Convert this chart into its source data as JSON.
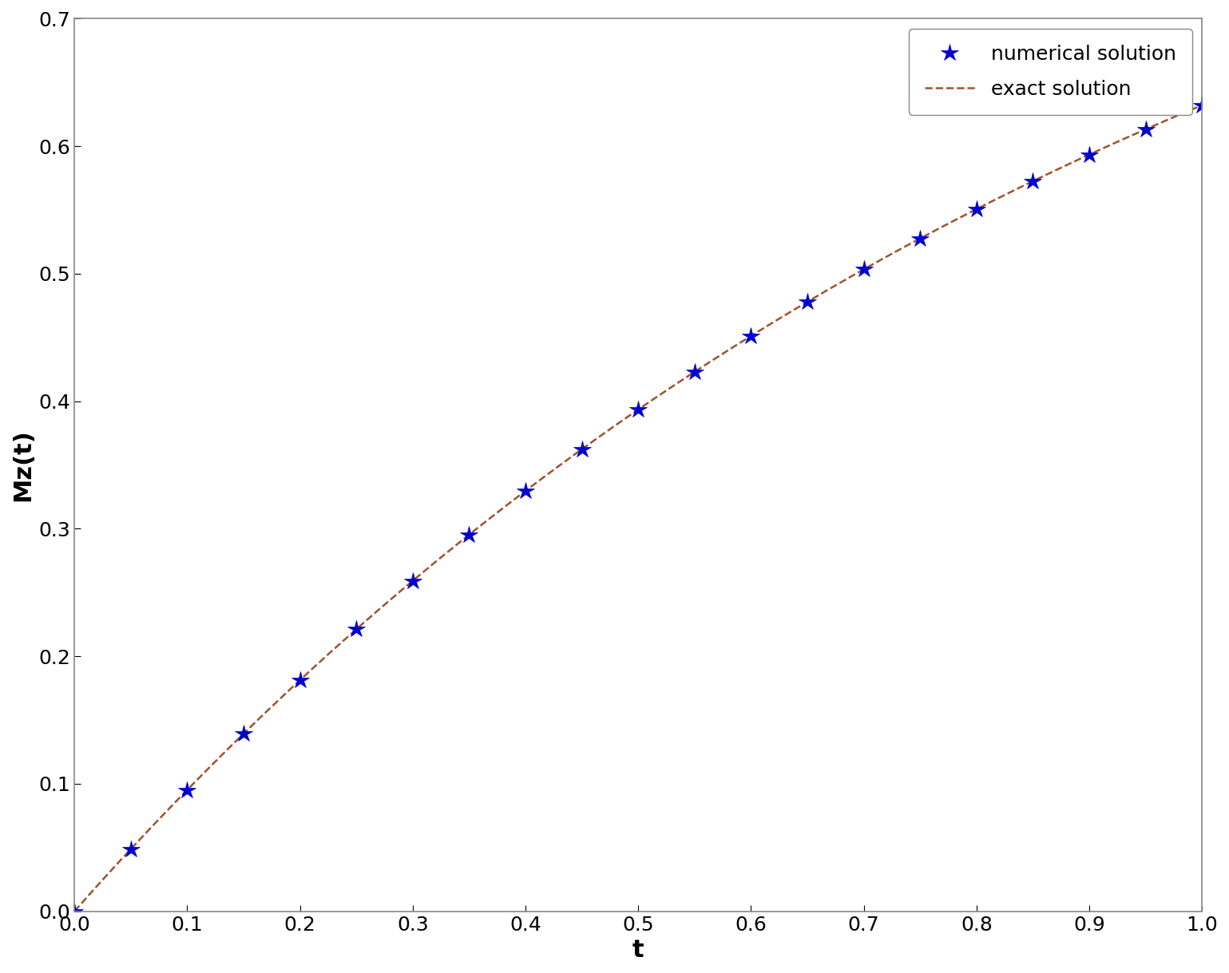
{
  "title": "",
  "xlabel": "t",
  "ylabel": "Mz(t)",
  "xlim": [
    0,
    1.0
  ],
  "ylim": [
    0,
    0.7
  ],
  "xticks": [
    0,
    0.1,
    0.2,
    0.3,
    0.4,
    0.5,
    0.6,
    0.7,
    0.8,
    0.9,
    1.0
  ],
  "yticks": [
    0,
    0.1,
    0.2,
    0.3,
    0.4,
    0.5,
    0.6,
    0.7
  ],
  "n_intervals": 20,
  "exact_color": "#A0522D",
  "numerical_color": "#0000CD",
  "legend_numerical": "numerical solution",
  "legend_exact": "exact solution",
  "xlabel_fontsize": 22,
  "ylabel_fontsize": 22,
  "tick_fontsize": 18,
  "legend_fontsize": 18,
  "background_color": "#ffffff",
  "figure_facecolor": "#ffffff",
  "spine_color": "#888888"
}
